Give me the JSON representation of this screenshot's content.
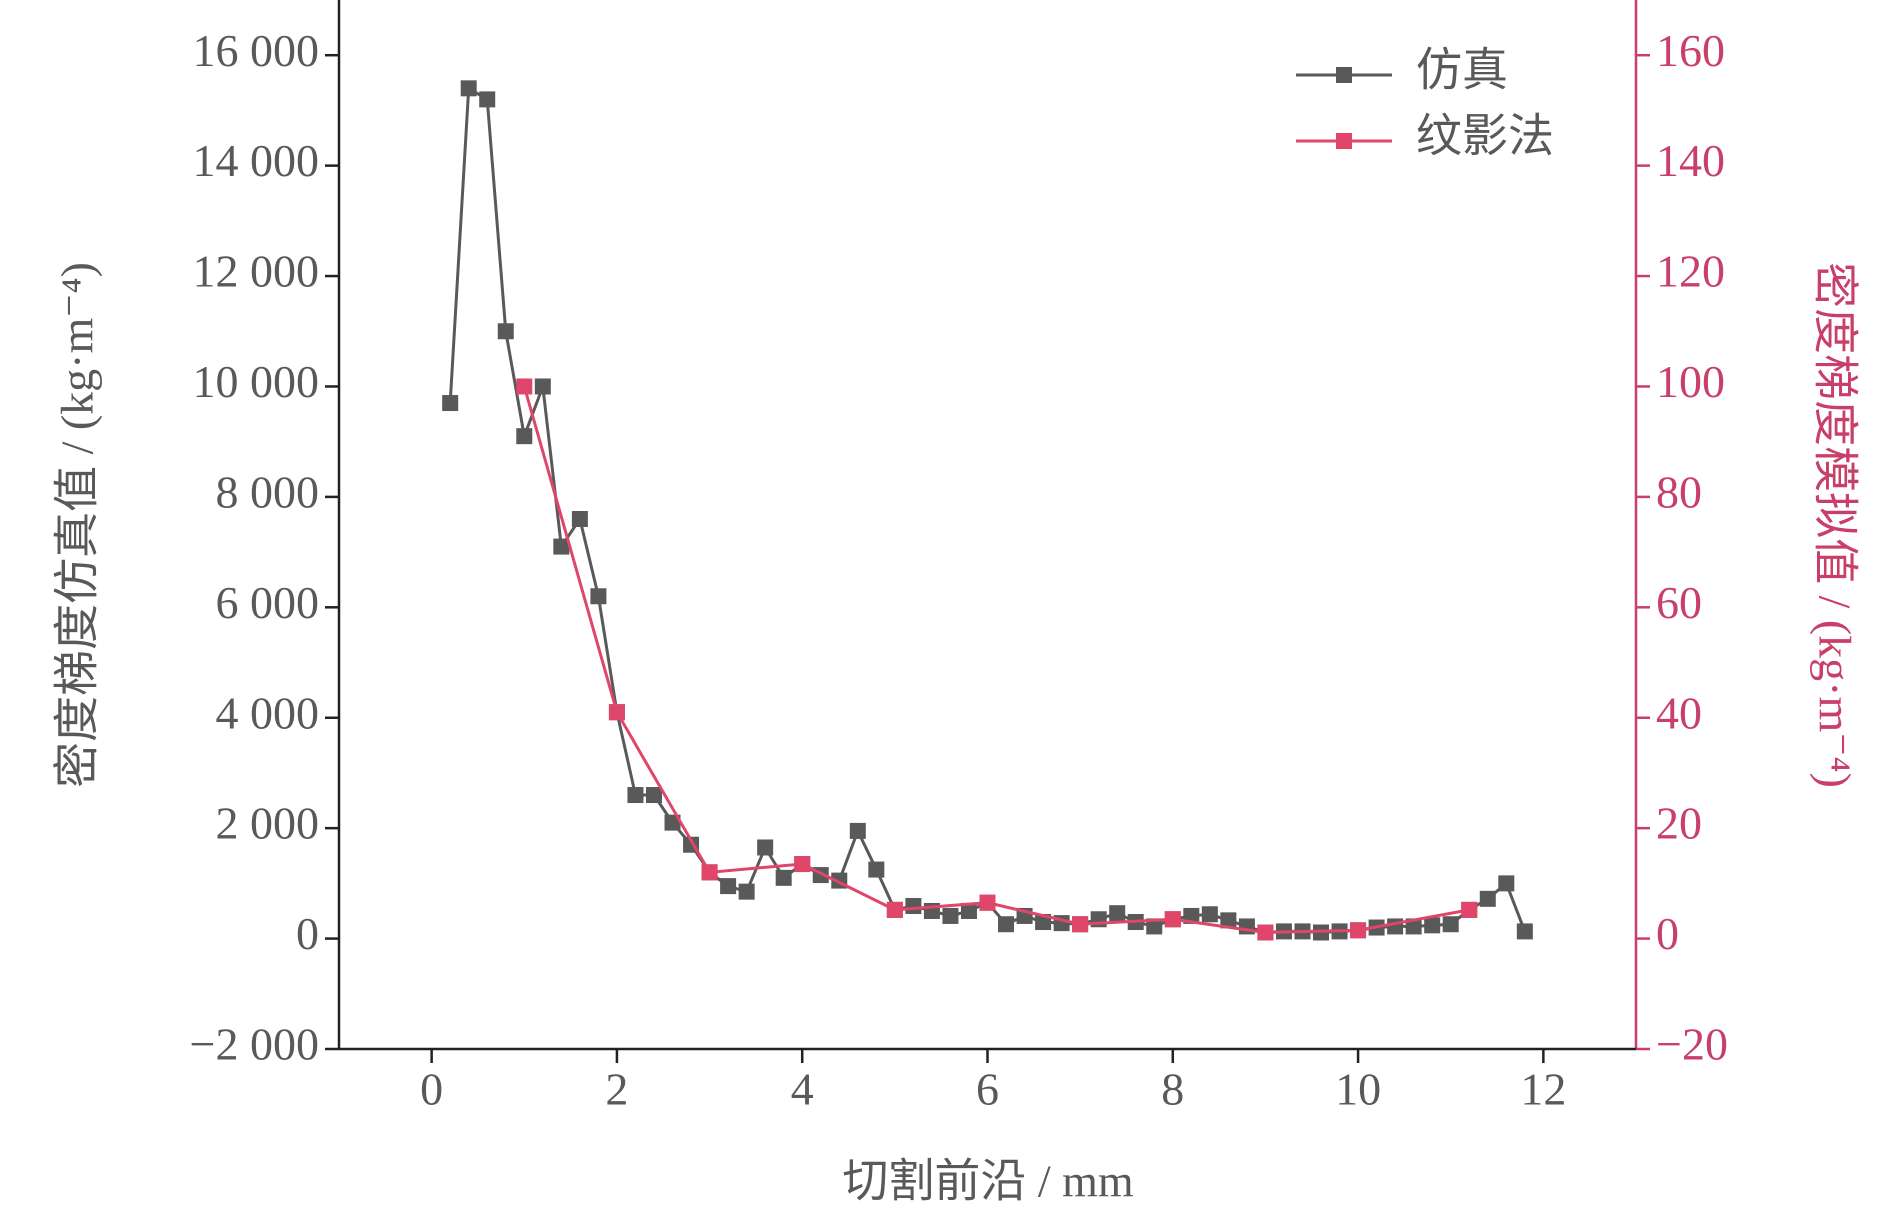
{
  "chart_data": {
    "type": "line",
    "xlabel": "切割前沿 / mm",
    "ylabel": "密度梯度仿真值 / (kg·m⁻⁴)",
    "y2label": "密度梯度模拟值 / (kg·m⁻⁴)",
    "xlim": [
      -1,
      13
    ],
    "xticks": [
      0,
      2,
      4,
      6,
      8,
      10,
      12
    ],
    "ylim": [
      -2000,
      17000
    ],
    "yticks": [
      {
        "value": -2000,
        "label": "−2 000"
      },
      0,
      {
        "value": 2000,
        "label": "2 000"
      },
      {
        "value": 4000,
        "label": "4 000"
      },
      {
        "value": 6000,
        "label": "6 000"
      },
      {
        "value": 8000,
        "label": "8 000"
      },
      {
        "value": 10000,
        "label": "10 000"
      },
      {
        "value": 12000,
        "label": "12 000"
      },
      {
        "value": 14000,
        "label": "14 000"
      },
      {
        "value": 16000,
        "label": "16 000"
      }
    ],
    "y2lim": [
      -20,
      170
    ],
    "y2ticks": [
      {
        "value": -20,
        "label": "−20"
      },
      0,
      20,
      40,
      60,
      80,
      100,
      120,
      140,
      160
    ],
    "y2color": "#c8406a",
    "legend": "upper right",
    "series": [
      {
        "name": "仿真",
        "color": "#595959",
        "x": [
          0.2,
          0.4,
          0.6,
          0.8,
          1.0,
          1.2,
          1.4,
          1.6,
          1.8,
          2.0,
          2.2,
          2.4,
          2.6,
          2.8,
          3.0,
          3.2,
          3.4,
          3.6,
          3.8,
          4.0,
          4.2,
          4.4,
          4.6,
          4.8,
          5.0,
          5.2,
          5.4,
          5.6,
          5.8,
          6.0,
          6.2,
          6.4,
          6.6,
          6.8,
          7.0,
          7.2,
          7.4,
          7.6,
          7.8,
          8.0,
          8.2,
          8.4,
          8.6,
          8.8,
          9.0,
          9.2,
          9.4,
          9.6,
          9.8,
          10.0,
          10.2,
          10.4,
          10.6,
          10.8,
          11.0,
          11.2,
          11.4,
          11.6,
          11.8
        ],
        "values": [
          9700,
          15400,
          15200,
          11000,
          9100,
          10000,
          7100,
          7600,
          6200,
          4100,
          2600,
          2600,
          2100,
          1700,
          1200,
          950,
          850,
          1650,
          1100,
          1350,
          1150,
          1050,
          1950,
          1250,
          520,
          590,
          500,
          410,
          500,
          650,
          260,
          410,
          300,
          280,
          260,
          350,
          460,
          300,
          220,
          350,
          410,
          440,
          330,
          220,
          110,
          130,
          130,
          110,
          130,
          150,
          200,
          220,
          220,
          240,
          260,
          520,
          720,
          1000,
          130
        ]
      },
      {
        "name": "纹影法",
        "color": "#e0456a",
        "axis": "y2",
        "x": [
          1.0,
          2.0,
          3.0,
          4.0,
          5.0,
          6.0,
          7.0,
          8.0,
          9.0,
          10.0,
          11.2
        ],
        "values": [
          100,
          41,
          12,
          13.5,
          5.2,
          6.5,
          2.6,
          3.5,
          1.1,
          1.5,
          5.2
        ]
      }
    ]
  }
}
